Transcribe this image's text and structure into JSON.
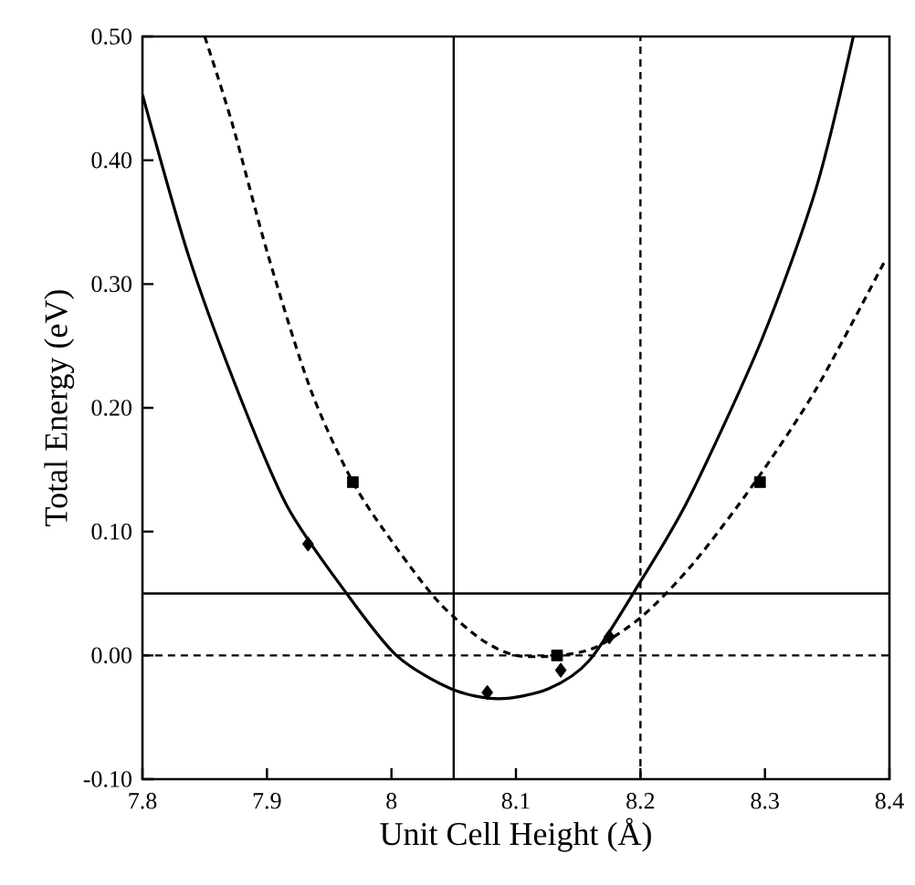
{
  "chart_data": {
    "type": "line",
    "xlabel": "Unit Cell Height (Å)",
    "ylabel": "Total Energy (eV)",
    "xlim": [
      7.8,
      8.4
    ],
    "xticks": [
      7.8,
      7.9,
      8,
      8.1,
      8.2,
      8.3,
      8.4
    ],
    "ylim": [
      -0.1,
      0.5
    ],
    "yticks": [
      {
        "value": -0.1,
        "label": "-0.10"
      },
      {
        "value": 0,
        "label": "0.00"
      },
      {
        "value": 0.1,
        "label": "0.10"
      },
      {
        "value": 0.2,
        "label": "0.20"
      },
      {
        "value": 0.3,
        "label": "0.30"
      },
      {
        "value": 0.4,
        "label": "0.40"
      },
      {
        "value": 0.5,
        "label": "0.50"
      }
    ],
    "grid": false,
    "series": [
      {
        "color": "#000000",
        "line_style": "solid",
        "marker": "none",
        "x": [
          7.8,
          7.837,
          7.876,
          7.916,
          7.964,
          8.004,
          8.048,
          8.086,
          8.126,
          8.159,
          8.199,
          8.239,
          8.297,
          8.341,
          8.371
        ],
        "values": [
          0.453,
          0.323,
          0.215,
          0.121,
          0.05,
          0.0,
          -0.027,
          -0.035,
          -0.027,
          -0.004,
          0.058,
          0.127,
          0.254,
          0.377,
          0.5
        ]
      },
      {
        "color": "#000000",
        "line_style": "dashed",
        "marker": "none",
        "x": [
          7.85,
          7.872,
          7.901,
          7.935,
          7.969,
          8.004,
          8.038,
          8.072,
          8.1,
          8.135,
          8.165,
          8.203,
          8.243,
          8.292,
          8.341,
          8.397
        ],
        "values": [
          0.5,
          0.43,
          0.323,
          0.215,
          0.14,
          0.087,
          0.043,
          0.013,
          0.0,
          0.0,
          0.007,
          0.033,
          0.075,
          0.14,
          0.215,
          0.32
        ]
      },
      {
        "type": "scatter",
        "color": "#000000",
        "marker": "diamond",
        "x": [
          7.933,
          8.077,
          8.136,
          8.175
        ],
        "values": [
          0.09,
          -0.03,
          -0.012,
          0.015
        ]
      },
      {
        "type": "scatter",
        "color": "#000000",
        "marker": "square",
        "x": [
          7.969,
          8.133,
          8.296
        ],
        "values": [
          0.14,
          0.0,
          0.14
        ]
      }
    ],
    "ref_lines": [
      {
        "axis": "x",
        "value": 8.05,
        "line_style": "solid"
      },
      {
        "axis": "x",
        "value": 8.2,
        "line_style": "dashed"
      },
      {
        "axis": "y",
        "value": 0.05,
        "line_style": "solid"
      },
      {
        "axis": "y",
        "value": 0,
        "line_style": "dashed"
      }
    ]
  }
}
